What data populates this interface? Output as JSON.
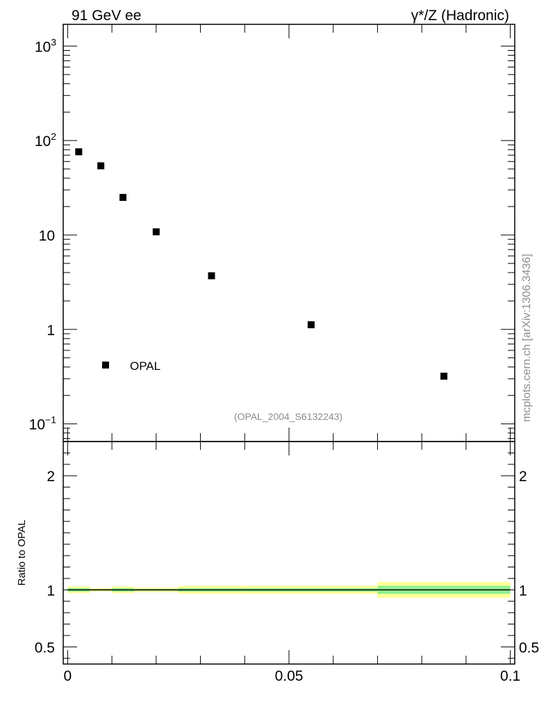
{
  "header": {
    "left_label": "91 GeV ee",
    "right_label": "γ*/Z (Hadronic)"
  },
  "side_label": "mcplots.cern.ch [arXiv:1306.3436]",
  "analysis_label": "(OPAL_2004_S6132243)",
  "chart_data": [
    {
      "type": "scatter",
      "panel": "main",
      "yscale": "log",
      "grid": false,
      "legend_position": "bottom-left",
      "legend": [
        "OPAL"
      ],
      "xlim": [
        -0.001,
        0.101
      ],
      "ylim": [
        0.065,
        1700
      ],
      "x_ticks": [
        "0",
        "0.05",
        "0.1"
      ],
      "y_ticks": [
        {
          "value": 0.1,
          "base": "10",
          "exp": "−1"
        },
        {
          "value": 1,
          "label": "1"
        },
        {
          "value": 10,
          "label": "10"
        },
        {
          "value": 100,
          "base": "10",
          "exp": "2"
        },
        {
          "value": 1000,
          "base": "10",
          "exp": "3"
        }
      ],
      "series": [
        {
          "name": "OPAL",
          "marker": "square",
          "color": "#000000",
          "x": [
            0.0025,
            0.0075,
            0.0125,
            0.02,
            0.0325,
            0.055,
            0.085
          ],
          "y": [
            76,
            54,
            25,
            10.8,
            3.7,
            1.12,
            0.32
          ]
        }
      ]
    },
    {
      "type": "area",
      "panel": "ratio",
      "ylabel": "Ratio to OPAL",
      "ylim": [
        0.35,
        2.3
      ],
      "y_ticks": [
        "0.5",
        "1",
        "2"
      ],
      "reference_line": 1,
      "band_colors": {
        "outer": "#ffff99",
        "inner": "#8ff08f",
        "line": "#000000"
      },
      "bins": [
        {
          "lo": 0.0,
          "hi": 0.005,
          "outer": [
            0.97,
            1.03
          ],
          "inner": [
            0.985,
            1.015
          ]
        },
        {
          "lo": 0.005,
          "hi": 0.01,
          "outer": [
            0.985,
            1.015
          ],
          "inner": [
            0.993,
            1.007
          ]
        },
        {
          "lo": 0.01,
          "hi": 0.015,
          "outer": [
            0.97,
            1.03
          ],
          "inner": [
            0.985,
            1.015
          ]
        },
        {
          "lo": 0.015,
          "hi": 0.025,
          "outer": [
            0.98,
            1.02
          ],
          "inner": [
            0.992,
            1.008
          ]
        },
        {
          "lo": 0.025,
          "hi": 0.04,
          "outer": [
            0.965,
            1.035
          ],
          "inner": [
            0.985,
            1.015
          ]
        },
        {
          "lo": 0.04,
          "hi": 0.07,
          "outer": [
            0.965,
            1.035
          ],
          "inner": [
            0.985,
            1.015
          ]
        },
        {
          "lo": 0.07,
          "hi": 0.1,
          "outer": [
            0.93,
            1.07
          ],
          "inner": [
            0.965,
            1.035
          ]
        }
      ]
    }
  ]
}
